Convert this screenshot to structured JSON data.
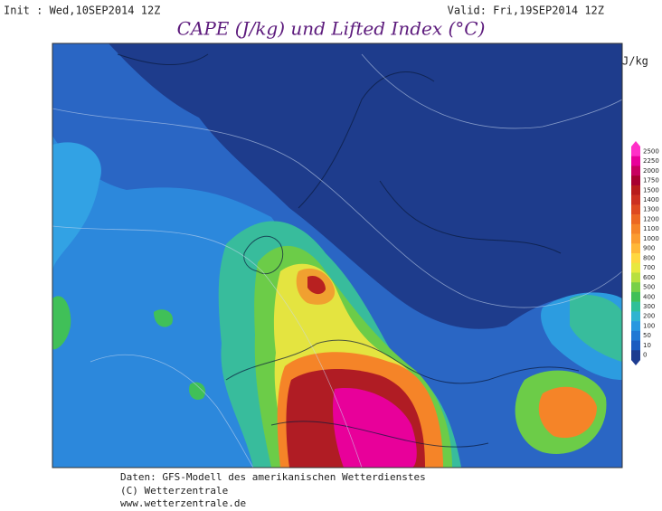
{
  "header": {
    "init": "Init : Wed,10SEP2014 12Z",
    "valid": "Valid: Fri,19SEP2014 12Z",
    "title": "CAPE (J/kg) und Lifted Index (°C)"
  },
  "unit": "J/kg",
  "colorbar": [
    {
      "label": "2500",
      "color": "#ff30c8"
    },
    {
      "label": "2250",
      "color": "#e8009a"
    },
    {
      "label": "2000",
      "color": "#c80060"
    },
    {
      "label": "1750",
      "color": "#a80030"
    },
    {
      "label": "1500",
      "color": "#b81c1c"
    },
    {
      "label": "1400",
      "color": "#cc3020"
    },
    {
      "label": "1300",
      "color": "#de4a20"
    },
    {
      "label": "1200",
      "color": "#ec6822"
    },
    {
      "label": "1100",
      "color": "#f58428"
    },
    {
      "label": "1000",
      "color": "#fb9c30"
    },
    {
      "label": "900",
      "color": "#ffb838"
    },
    {
      "label": "800",
      "color": "#ffd840"
    },
    {
      "label": "700",
      "color": "#e8e840"
    },
    {
      "label": "600",
      "color": "#b8e040"
    },
    {
      "label": "500",
      "color": "#78d048"
    },
    {
      "label": "400",
      "color": "#40c058"
    },
    {
      "label": "300",
      "color": "#30c098"
    },
    {
      "label": "200",
      "color": "#30b4d0"
    },
    {
      "label": "100",
      "color": "#2898e0"
    },
    {
      "label": "50",
      "color": "#2078d4"
    },
    {
      "label": "10",
      "color": "#1c5cc0"
    },
    {
      "label": "0",
      "color": "#1e3c90"
    }
  ],
  "footer": [
    "Daten: GFS-Modell des amerikanischen Wetterdienstes",
    "(C) Wetterzentrale",
    "www.wetterzentrale.de"
  ]
}
